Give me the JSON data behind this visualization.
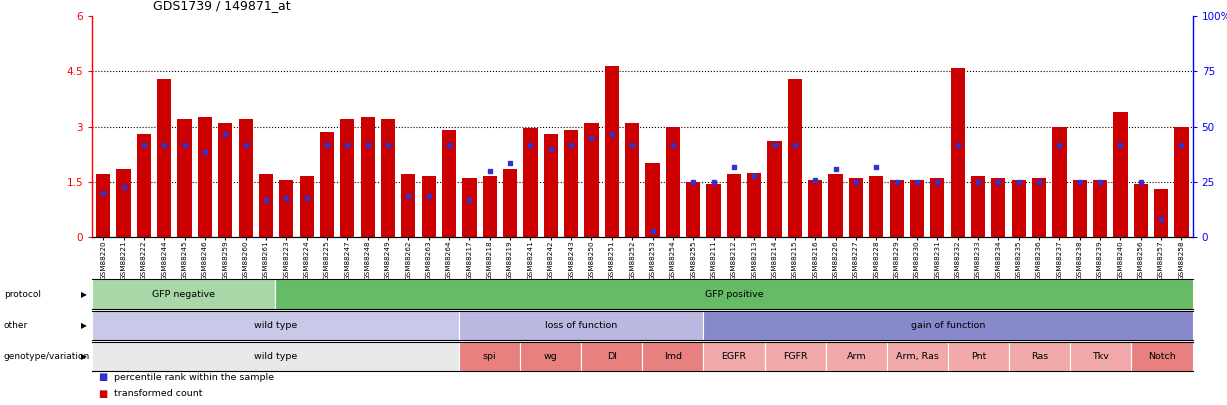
{
  "title": "GDS1739 / 149871_at",
  "ylim_left": [
    0,
    6
  ],
  "ylim_right": [
    0,
    100
  ],
  "yticks_left": [
    0,
    1.5,
    3.0,
    4.5,
    6
  ],
  "yticks_right": [
    0,
    25,
    50,
    75,
    100
  ],
  "ytick_labels_left": [
    "0",
    "1.5",
    "3",
    "4.5",
    "6"
  ],
  "ytick_labels_right": [
    "0",
    "25",
    "50",
    "75",
    "100%"
  ],
  "samples": [
    "GSM88220",
    "GSM88221",
    "GSM88222",
    "GSM88244",
    "GSM88245",
    "GSM88246",
    "GSM88259",
    "GSM88260",
    "GSM88261",
    "GSM88223",
    "GSM88224",
    "GSM88225",
    "GSM88247",
    "GSM88248",
    "GSM88249",
    "GSM88262",
    "GSM88263",
    "GSM88264",
    "GSM88217",
    "GSM88218",
    "GSM88219",
    "GSM88241",
    "GSM88242",
    "GSM88243",
    "GSM88250",
    "GSM88251",
    "GSM88252",
    "GSM88253",
    "GSM88254",
    "GSM88255",
    "GSM88211",
    "GSM88212",
    "GSM88213",
    "GSM88214",
    "GSM88215",
    "GSM88216",
    "GSM88226",
    "GSM88227",
    "GSM88228",
    "GSM88229",
    "GSM88230",
    "GSM88231",
    "GSM88232",
    "GSM88233",
    "GSM88234",
    "GSM88235",
    "GSM88236",
    "GSM88237",
    "GSM88238",
    "GSM88239",
    "GSM88240",
    "GSM88256",
    "GSM88257",
    "GSM88258"
  ],
  "bar_values": [
    1.7,
    1.85,
    2.8,
    4.3,
    3.2,
    3.25,
    3.1,
    3.2,
    1.7,
    1.55,
    1.65,
    2.85,
    3.2,
    3.25,
    3.2,
    1.7,
    1.65,
    2.9,
    1.6,
    1.65,
    1.85,
    2.95,
    2.8,
    2.9,
    3.1,
    4.65,
    3.1,
    2.0,
    3.0,
    1.5,
    1.45,
    1.7,
    1.75,
    2.6,
    4.3,
    1.55,
    1.7,
    1.6,
    1.65,
    1.55,
    1.55,
    1.6,
    4.6,
    1.65,
    1.6,
    1.55,
    1.6,
    3.0,
    1.55,
    1.55,
    3.4,
    1.45,
    1.3,
    3.0
  ],
  "blue_values": [
    1.2,
    1.35,
    2.5,
    2.5,
    2.5,
    2.3,
    2.8,
    2.5,
    1.0,
    1.05,
    1.05,
    2.5,
    2.5,
    2.5,
    2.5,
    1.1,
    1.1,
    2.5,
    1.0,
    1.8,
    2.0,
    2.5,
    2.4,
    2.5,
    2.7,
    2.8,
    2.5,
    0.15,
    2.5,
    1.5,
    1.5,
    1.9,
    1.65,
    2.5,
    2.5,
    1.55,
    1.85,
    1.5,
    1.9,
    1.5,
    1.5,
    1.5,
    2.5,
    1.5,
    1.5,
    1.5,
    1.5,
    2.5,
    1.5,
    1.5,
    2.5,
    1.5,
    0.5,
    2.5
  ],
  "bar_color": "#cc0000",
  "blue_color": "#3333cc",
  "bg_color": "#ffffff",
  "protocol_row": {
    "label": "protocol",
    "segments": [
      {
        "text": "GFP negative",
        "start": 0,
        "end": 9,
        "color": "#a8d8a8"
      },
      {
        "text": "GFP positive",
        "start": 9,
        "end": 54,
        "color": "#66bb66"
      }
    ]
  },
  "other_row": {
    "label": "other",
    "segments": [
      {
        "text": "wild type",
        "start": 0,
        "end": 18,
        "color": "#c8c8e8"
      },
      {
        "text": "loss of function",
        "start": 18,
        "end": 30,
        "color": "#b8b8e0"
      },
      {
        "text": "gain of function",
        "start": 30,
        "end": 54,
        "color": "#8888cc"
      }
    ]
  },
  "genotype_row": {
    "label": "genotype/variation",
    "segments": [
      {
        "text": "wild type",
        "start": 0,
        "end": 18,
        "color": "#e8e8e8"
      },
      {
        "text": "spi",
        "start": 18,
        "end": 21,
        "color": "#e88080"
      },
      {
        "text": "wg",
        "start": 21,
        "end": 24,
        "color": "#e88080"
      },
      {
        "text": "Dl",
        "start": 24,
        "end": 27,
        "color": "#e88080"
      },
      {
        "text": "Imd",
        "start": 27,
        "end": 30,
        "color": "#e88080"
      },
      {
        "text": "EGFR",
        "start": 30,
        "end": 33,
        "color": "#f0a8a8"
      },
      {
        "text": "FGFR",
        "start": 33,
        "end": 36,
        "color": "#f0a8a8"
      },
      {
        "text": "Arm",
        "start": 36,
        "end": 39,
        "color": "#f0a8a8"
      },
      {
        "text": "Arm, Ras",
        "start": 39,
        "end": 42,
        "color": "#f0a8a8"
      },
      {
        "text": "Pnt",
        "start": 42,
        "end": 45,
        "color": "#f0a8a8"
      },
      {
        "text": "Ras",
        "start": 45,
        "end": 48,
        "color": "#f0a8a8"
      },
      {
        "text": "Tkv",
        "start": 48,
        "end": 51,
        "color": "#f0a8a8"
      },
      {
        "text": "Notch",
        "start": 51,
        "end": 54,
        "color": "#e88080"
      }
    ]
  },
  "dotted_lines": [
    1.5,
    3.0,
    4.5
  ],
  "legend_items": [
    {
      "label": "transformed count",
      "color": "#cc0000"
    },
    {
      "label": "percentile rank within the sample",
      "color": "#3333cc"
    }
  ]
}
